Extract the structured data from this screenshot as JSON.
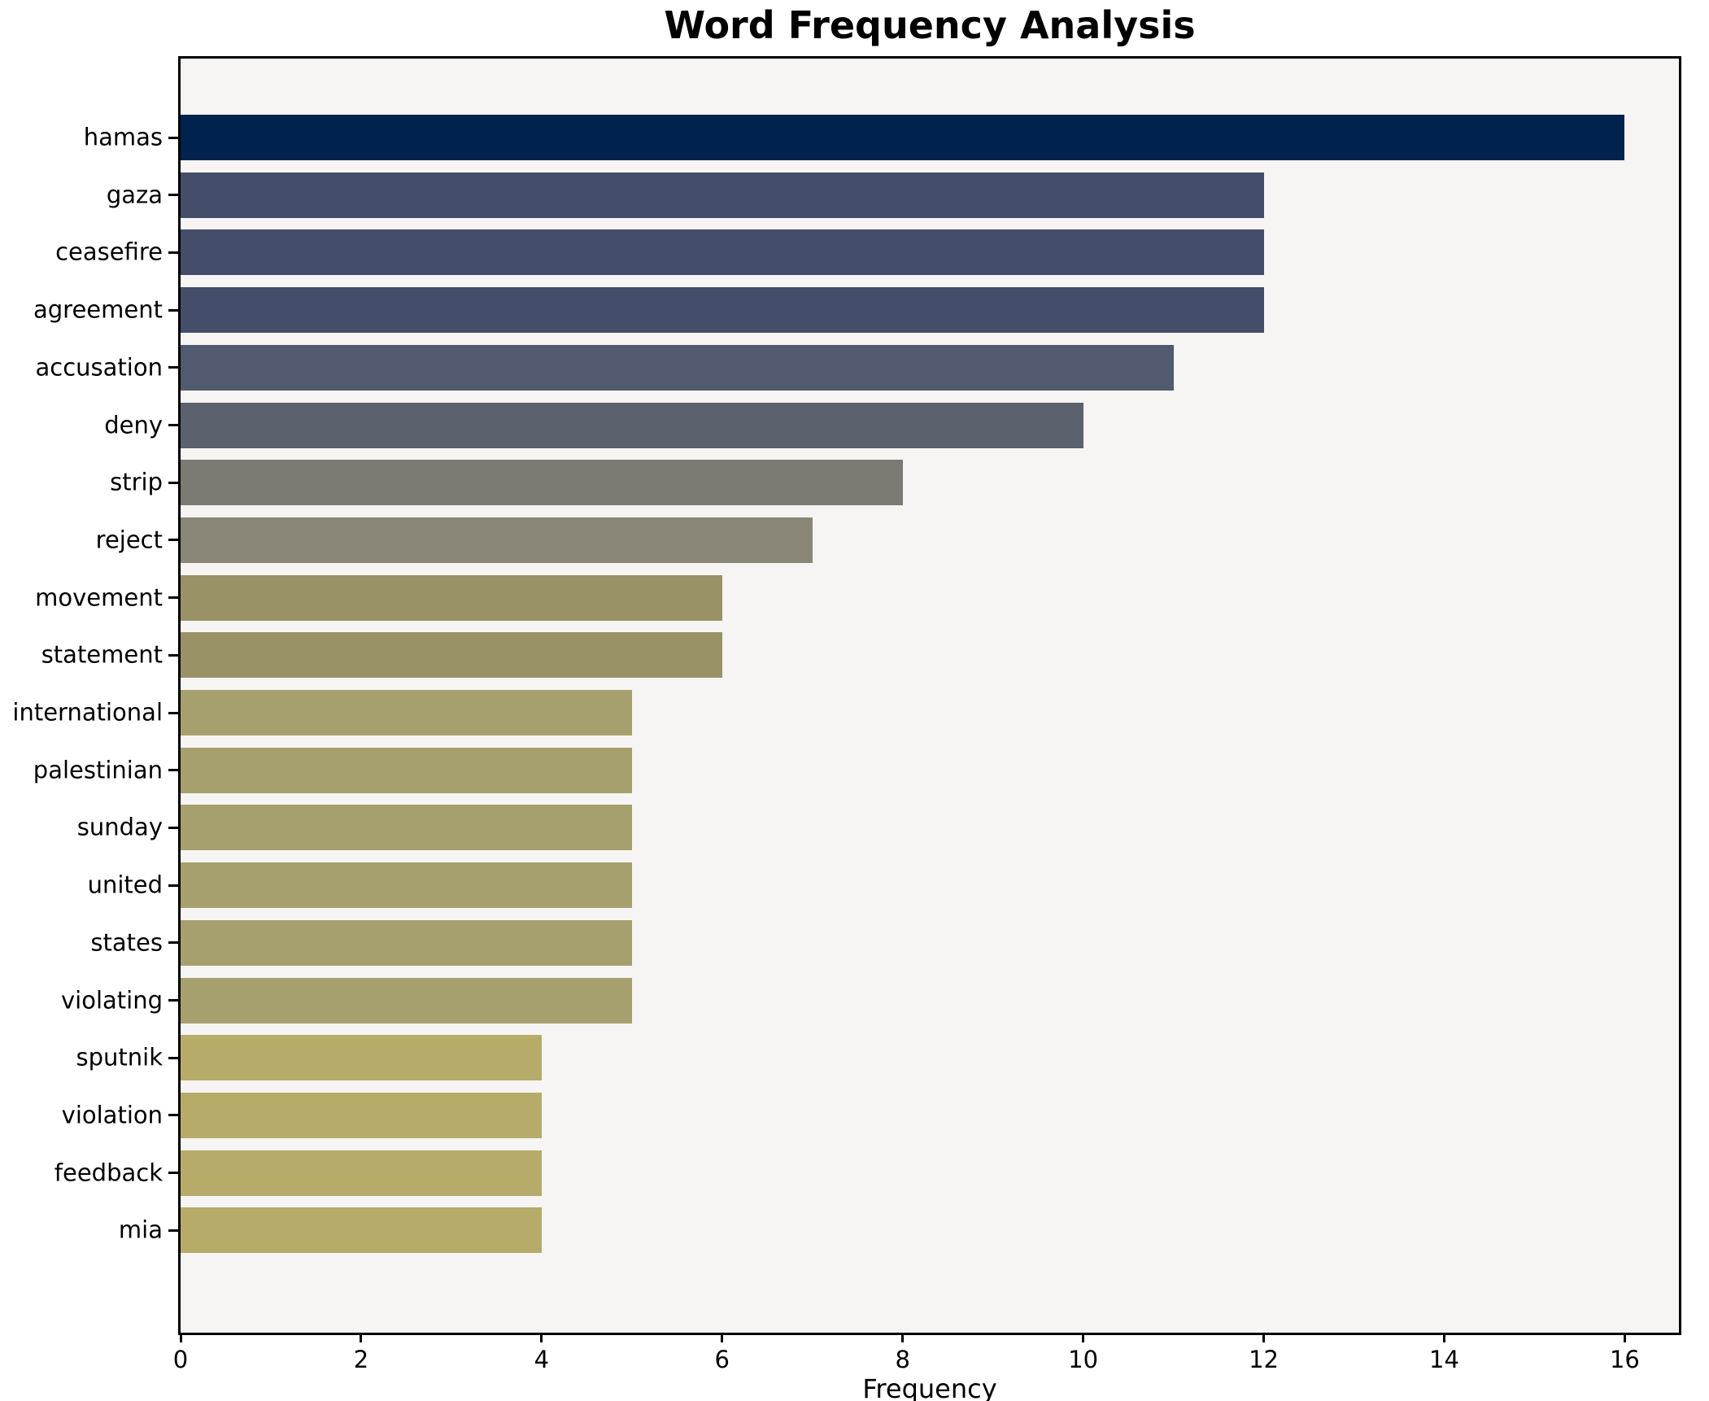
{
  "title": "Word Frequency Analysis",
  "chart_data": {
    "type": "bar",
    "orientation": "horizontal",
    "title": "Word Frequency Analysis",
    "xlabel": "Frequency",
    "ylabel": "",
    "categories": [
      "hamas",
      "gaza",
      "ceasefire",
      "agreement",
      "accusation",
      "deny",
      "strip",
      "reject",
      "movement",
      "statement",
      "international",
      "palestinian",
      "sunday",
      "united",
      "states",
      "violating",
      "sputnik",
      "violation",
      "feedback",
      "mia"
    ],
    "values": [
      16,
      12,
      12,
      12,
      11,
      10,
      8,
      7,
      6,
      6,
      5,
      5,
      5,
      5,
      5,
      5,
      4,
      4,
      4,
      4
    ],
    "bar_colors": [
      "#00234e",
      "#444e6b",
      "#444e6b",
      "#444e6b",
      "#515a6e",
      "#5c616e",
      "#7b7a73",
      "#8a8778",
      "#999267",
      "#999267",
      "#a6a06f",
      "#a6a06f",
      "#a6a06f",
      "#a6a06f",
      "#a6a06f",
      "#a6a06f",
      "#b6ab69",
      "#b6ab69",
      "#b6ab69",
      "#b6ab69"
    ],
    "xticks": [
      0,
      2,
      4,
      6,
      8,
      10,
      12,
      14,
      16
    ],
    "xlim": [
      0,
      16.6
    ],
    "grid": false,
    "legend_position": "none",
    "colormap": "cividis",
    "plot_background": "#f6f5f3",
    "figure_background": "#ffffff",
    "spine_color": "#000000",
    "bar_height_fraction": 0.8
  }
}
